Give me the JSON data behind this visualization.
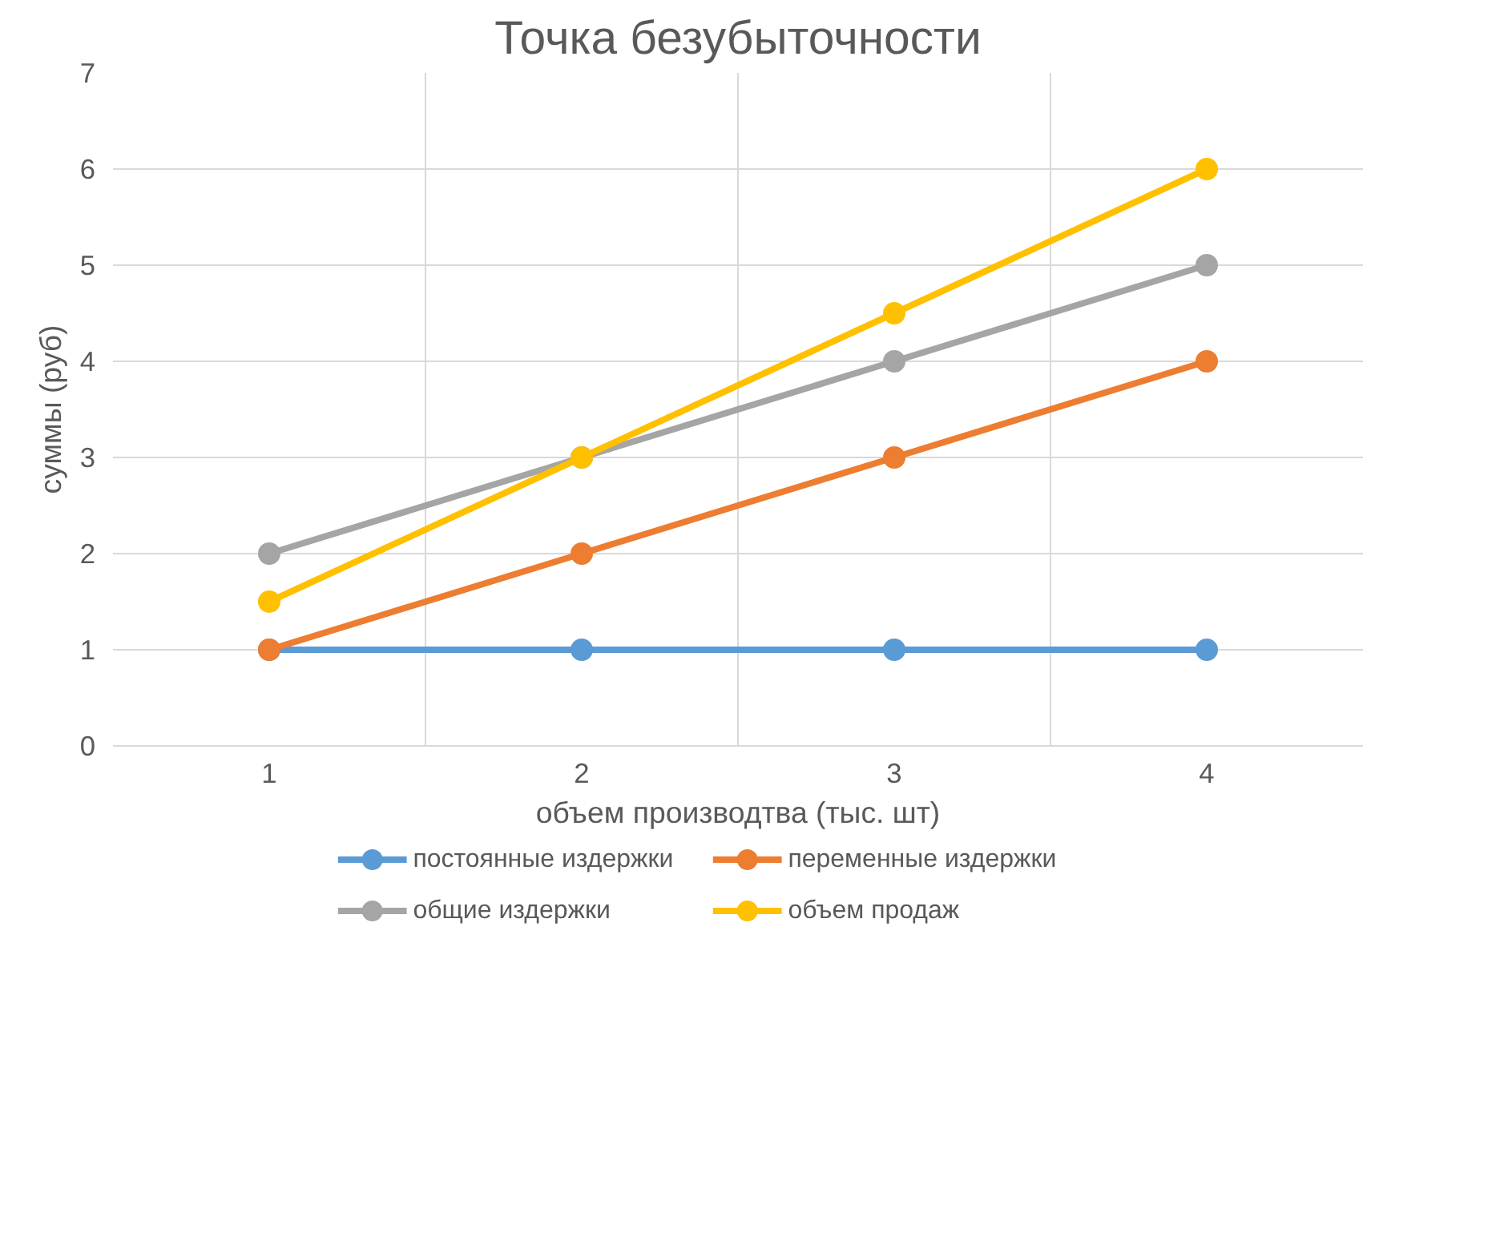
{
  "chart_data": {
    "type": "line",
    "title": "Точка безубыточности",
    "xlabel": "объем производтва (тыс. шт)",
    "ylabel": "суммы (руб)",
    "categories": [
      "1",
      "2",
      "3",
      "4"
    ],
    "series": [
      {
        "name": "постоянные издержки",
        "color": "#5b9bd5",
        "values": [
          1,
          1,
          1,
          1
        ]
      },
      {
        "name": "переменные издержки",
        "color": "#ed7d31",
        "values": [
          1,
          2,
          3,
          4
        ]
      },
      {
        "name": "общие издержки",
        "color": "#a5a5a5",
        "values": [
          2,
          3,
          4,
          5
        ]
      },
      {
        "name": "объем продаж",
        "color": "#ffc000",
        "values": [
          1.5,
          3,
          4.5,
          6
        ]
      }
    ],
    "ylim": [
      0,
      7
    ],
    "yticks": [
      0,
      1,
      2,
      3,
      4,
      5,
      6,
      7
    ],
    "grid": true,
    "legend": "bottom",
    "marker": "circle",
    "line_style": "solid"
  }
}
